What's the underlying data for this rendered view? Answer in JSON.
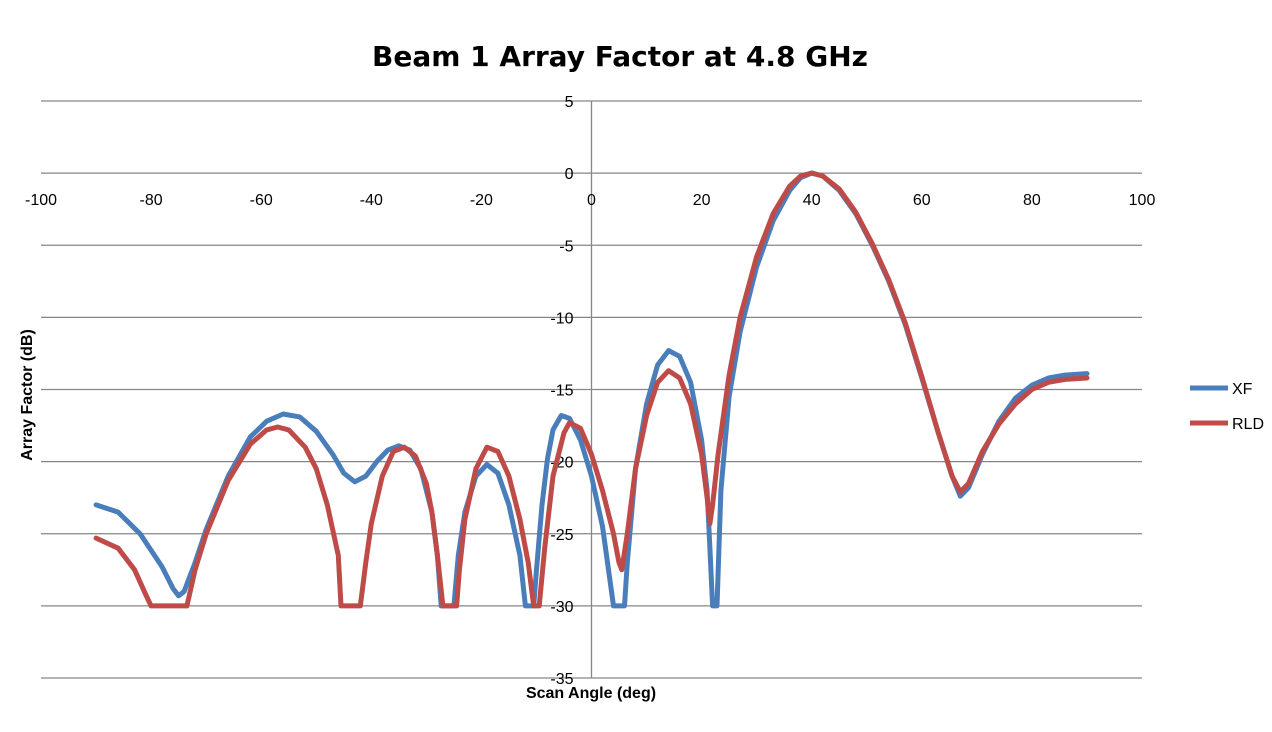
{
  "chart_data": {
    "type": "line",
    "title": "Beam 1 Array Factor at 4.8 GHz",
    "xlabel": "Scan Angle (deg)",
    "ylabel": "Array Factor (dB)",
    "xlim": [
      -100,
      100
    ],
    "ylim": [
      -35,
      5
    ],
    "xticks": [
      -100,
      -80,
      -60,
      -40,
      -20,
      0,
      20,
      40,
      60,
      80,
      100
    ],
    "yticks": [
      5,
      0,
      -5,
      -10,
      -15,
      -20,
      -25,
      -30,
      -35
    ],
    "grid": "horizontal",
    "legend_position": "right",
    "series": [
      {
        "name": "XF",
        "color": "#4a7ebb",
        "points": [
          [
            -90,
            -23
          ],
          [
            -86,
            -23.5
          ],
          [
            -82,
            -25
          ],
          [
            -78,
            -27.3
          ],
          [
            -76,
            -28.8
          ],
          [
            -75,
            -29.3
          ],
          [
            -74,
            -29
          ],
          [
            -72,
            -27
          ],
          [
            -70,
            -24.7
          ],
          [
            -66,
            -21
          ],
          [
            -62,
            -18.3
          ],
          [
            -59,
            -17.2
          ],
          [
            -56,
            -16.7
          ],
          [
            -53,
            -16.9
          ],
          [
            -50,
            -17.9
          ],
          [
            -47,
            -19.5
          ],
          [
            -45,
            -20.8
          ],
          [
            -43,
            -21.4
          ],
          [
            -41,
            -21
          ],
          [
            -39,
            -20
          ],
          [
            -37,
            -19.2
          ],
          [
            -35,
            -18.9
          ],
          [
            -33,
            -19.2
          ],
          [
            -31,
            -20.5
          ],
          [
            -29,
            -23.5
          ],
          [
            -28,
            -26.5
          ],
          [
            -27.3,
            -30
          ],
          [
            -25,
            -30
          ],
          [
            -24.2,
            -26.5
          ],
          [
            -23,
            -23.5
          ],
          [
            -21,
            -21
          ],
          [
            -19,
            -20.2
          ],
          [
            -17,
            -20.8
          ],
          [
            -15,
            -23
          ],
          [
            -13,
            -26.5
          ],
          [
            -12,
            -30
          ],
          [
            -10.5,
            -30
          ],
          [
            -10,
            -27.5
          ],
          [
            -9,
            -23
          ],
          [
            -8,
            -19.8
          ],
          [
            -7,
            -17.8
          ],
          [
            -5.5,
            -16.8
          ],
          [
            -4,
            -17
          ],
          [
            -2,
            -18.5
          ],
          [
            0,
            -21
          ],
          [
            2,
            -24.5
          ],
          [
            4,
            -30
          ],
          [
            6,
            -30
          ],
          [
            6.5,
            -27
          ],
          [
            8,
            -20.5
          ],
          [
            10,
            -16
          ],
          [
            12,
            -13.3
          ],
          [
            14,
            -12.3
          ],
          [
            16,
            -12.7
          ],
          [
            18,
            -14.5
          ],
          [
            20,
            -18.5
          ],
          [
            21,
            -22
          ],
          [
            21.5,
            -26
          ],
          [
            22,
            -30
          ],
          [
            22.8,
            -30
          ],
          [
            23.5,
            -22
          ],
          [
            25,
            -15.5
          ],
          [
            27,
            -11
          ],
          [
            30,
            -6.5
          ],
          [
            33,
            -3.3
          ],
          [
            36,
            -1.2
          ],
          [
            38,
            -0.3
          ],
          [
            40,
            0
          ],
          [
            42,
            -0.2
          ],
          [
            45,
            -1.2
          ],
          [
            48,
            -2.8
          ],
          [
            51,
            -5
          ],
          [
            54,
            -7.5
          ],
          [
            57,
            -10.5
          ],
          [
            60,
            -14.2
          ],
          [
            63,
            -18
          ],
          [
            65.5,
            -21
          ],
          [
            67,
            -22.4
          ],
          [
            68.5,
            -21.8
          ],
          [
            71,
            -19.5
          ],
          [
            74,
            -17.2
          ],
          [
            77,
            -15.6
          ],
          [
            80,
            -14.7
          ],
          [
            83,
            -14.2
          ],
          [
            86,
            -14
          ],
          [
            90,
            -13.9
          ]
        ]
      },
      {
        "name": "RLD",
        "color": "#be4b48",
        "points": [
          [
            -90,
            -25.3
          ],
          [
            -86,
            -26
          ],
          [
            -83,
            -27.5
          ],
          [
            -81,
            -29.2
          ],
          [
            -80,
            -30
          ],
          [
            -73.5,
            -30
          ],
          [
            -72,
            -27.5
          ],
          [
            -70,
            -25
          ],
          [
            -66,
            -21.3
          ],
          [
            -62,
            -18.8
          ],
          [
            -59,
            -17.8
          ],
          [
            -57,
            -17.6
          ],
          [
            -55,
            -17.8
          ],
          [
            -52,
            -19
          ],
          [
            -50,
            -20.5
          ],
          [
            -48,
            -23
          ],
          [
            -46,
            -26.5
          ],
          [
            -45.5,
            -30
          ],
          [
            -42,
            -30
          ],
          [
            -41,
            -27
          ],
          [
            -40,
            -24.3
          ],
          [
            -38,
            -21
          ],
          [
            -36,
            -19.3
          ],
          [
            -34,
            -19
          ],
          [
            -32,
            -19.6
          ],
          [
            -30,
            -21.5
          ],
          [
            -29,
            -23.5
          ],
          [
            -28,
            -26.5
          ],
          [
            -27,
            -30
          ],
          [
            -24.5,
            -30
          ],
          [
            -24,
            -27.5
          ],
          [
            -23,
            -24
          ],
          [
            -21,
            -20.5
          ],
          [
            -19,
            -19
          ],
          [
            -17,
            -19.3
          ],
          [
            -15,
            -21
          ],
          [
            -13,
            -24
          ],
          [
            -11.5,
            -27
          ],
          [
            -10.5,
            -30
          ],
          [
            -9.5,
            -30
          ],
          [
            -8.5,
            -26
          ],
          [
            -7,
            -21
          ],
          [
            -5,
            -18
          ],
          [
            -4,
            -17.3
          ],
          [
            -2,
            -17.7
          ],
          [
            0,
            -19.5
          ],
          [
            2,
            -22
          ],
          [
            4,
            -25
          ],
          [
            5,
            -27
          ],
          [
            5.5,
            -27.5
          ],
          [
            6.5,
            -25
          ],
          [
            8,
            -20.5
          ],
          [
            10,
            -16.8
          ],
          [
            12,
            -14.5
          ],
          [
            14,
            -13.7
          ],
          [
            16,
            -14.2
          ],
          [
            18,
            -16
          ],
          [
            20,
            -19.5
          ],
          [
            21,
            -22.5
          ],
          [
            21.5,
            -24.3
          ],
          [
            22,
            -23
          ],
          [
            23,
            -19.5
          ],
          [
            25,
            -14
          ],
          [
            27,
            -10
          ],
          [
            30,
            -5.8
          ],
          [
            33,
            -2.8
          ],
          [
            36,
            -0.9
          ],
          [
            38,
            -0.2
          ],
          [
            40,
            0
          ],
          [
            42,
            -0.2
          ],
          [
            45,
            -1.1
          ],
          [
            48,
            -2.7
          ],
          [
            51,
            -4.9
          ],
          [
            54,
            -7.4
          ],
          [
            57,
            -10.4
          ],
          [
            60,
            -14.1
          ],
          [
            63,
            -18
          ],
          [
            65.5,
            -21
          ],
          [
            67,
            -22.1
          ],
          [
            68.5,
            -21.5
          ],
          [
            71,
            -19.3
          ],
          [
            74,
            -17.4
          ],
          [
            77,
            -16
          ],
          [
            80,
            -15
          ],
          [
            83,
            -14.5
          ],
          [
            86,
            -14.3
          ],
          [
            90,
            -14.2
          ]
        ]
      }
    ]
  }
}
